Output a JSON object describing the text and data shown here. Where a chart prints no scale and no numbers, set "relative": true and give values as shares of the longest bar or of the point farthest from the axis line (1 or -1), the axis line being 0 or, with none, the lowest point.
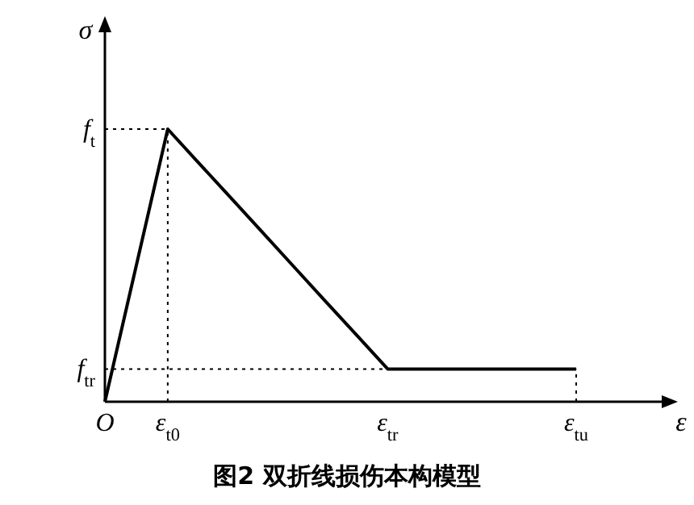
{
  "chart_data": {
    "type": "line",
    "title": "图2 双折线损伤本构模型",
    "xlabel": "ε",
    "ylabel": "σ",
    "relative": true,
    "categories": [
      "O",
      null,
      "ε$_{t0}$",
      null,
      null,
      null,
      null,
      null,
      null,
      "ε$_{tr}$",
      null,
      null,
      null,
      null,
      null,
      "ε$_{tu}$"
    ],
    "series": [
      {
        "color": "#000000",
        "line_style": "solid",
        "values": [
          0,
          0.5,
          1,
          0.874,
          0.749,
          0.623,
          0.497,
          0.371,
          0.246,
          0.12,
          0.12,
          0.12,
          0.12,
          0.12,
          0.12,
          0.12
        ]
      }
    ],
    "ref_lines": [
      {
        "axis": "y",
        "value": 1,
        "label": "f$_{t}$",
        "line_style": "dotted"
      },
      {
        "axis": "y",
        "value": 0.12,
        "label": "f$_{tr}$",
        "line_style": "dotted"
      },
      {
        "axis": "x",
        "value": "ε$_{t0}$",
        "line_style": "dotted"
      },
      {
        "axis": "x",
        "value": "ε$_{tu}$",
        "line_style": "dotted"
      }
    ]
  }
}
